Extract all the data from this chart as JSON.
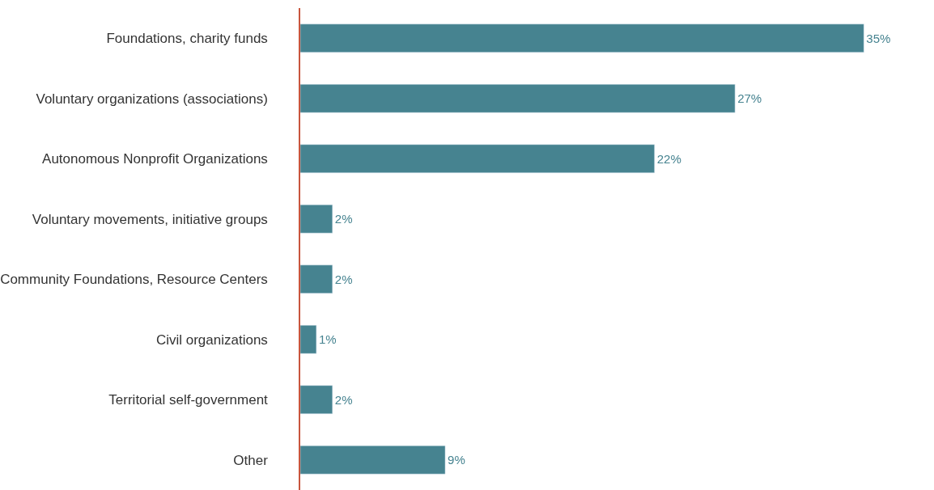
{
  "chart_data": {
    "type": "bar",
    "orientation": "horizontal",
    "categories": [
      "Foundations, charity funds",
      "Voluntary organizations (associations)",
      "Autonomous Nonprofit Organizations",
      "Voluntary movements, initiative groups",
      "Community Foundations, Resource Centers",
      "Civil organizations",
      "Territorial self-government",
      "Other"
    ],
    "values": [
      35,
      27,
      22,
      2,
      2,
      1,
      2,
      9
    ],
    "value_labels": [
      "35%",
      "27%",
      "22%",
      "2%",
      "2%",
      "1%",
      "2%",
      "9%"
    ],
    "color": "#468390",
    "legend": false
  }
}
